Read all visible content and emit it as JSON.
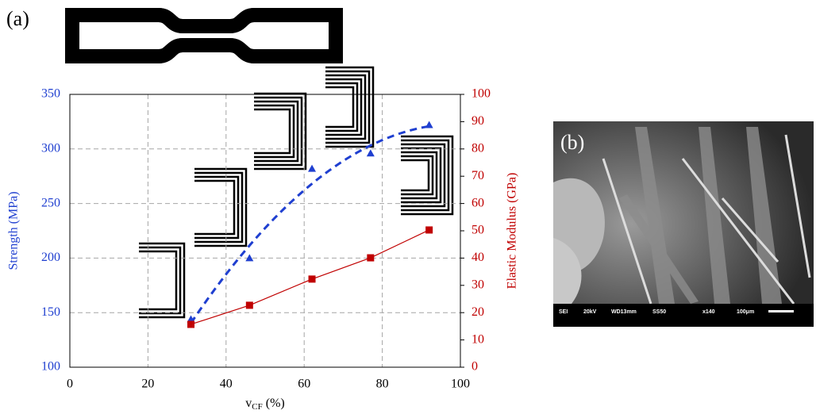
{
  "chart_data": {
    "type": "scatter",
    "panel_label": "(a)",
    "x_label": {
      "base": "v",
      "sub": "CF",
      "unit": " (%)"
    },
    "y_label": "Strength (MPa)",
    "y2_label": "Elastic Modulus (GPa)",
    "xlim": [
      0,
      100
    ],
    "xticks": [
      0,
      20,
      40,
      60,
      80,
      100
    ],
    "ylim": [
      100,
      350
    ],
    "yticks": [
      100,
      150,
      200,
      250,
      300,
      350
    ],
    "y2lim": [
      0,
      100
    ],
    "y2ticks": [
      0,
      10,
      20,
      30,
      40,
      50,
      60,
      70,
      80,
      90,
      100
    ],
    "grid": true,
    "y_color": "#1f3fd0",
    "y2_color": "#c00000",
    "series": [
      {
        "name": "Strength",
        "color": "#1f3fd0",
        "marker": "triangle",
        "trend": "quadratic",
        "x": [
          31,
          46,
          62,
          77,
          92
        ],
        "values": [
          144,
          200,
          282,
          296,
          322
        ]
      },
      {
        "name": "Elastic Modulus",
        "color": "#c00000",
        "marker": "square",
        "trend": "line",
        "axis": "y2",
        "x": [
          31,
          46,
          62,
          77,
          92
        ],
        "values": [
          15.7,
          22.7,
          32.3,
          40.1,
          50.3
        ]
      }
    ]
  },
  "image_panel": {
    "label": "(b)",
    "info_bar": [
      "SEI",
      "20kV",
      "WD13mm",
      "SS50",
      "x140",
      "100μm"
    ]
  }
}
